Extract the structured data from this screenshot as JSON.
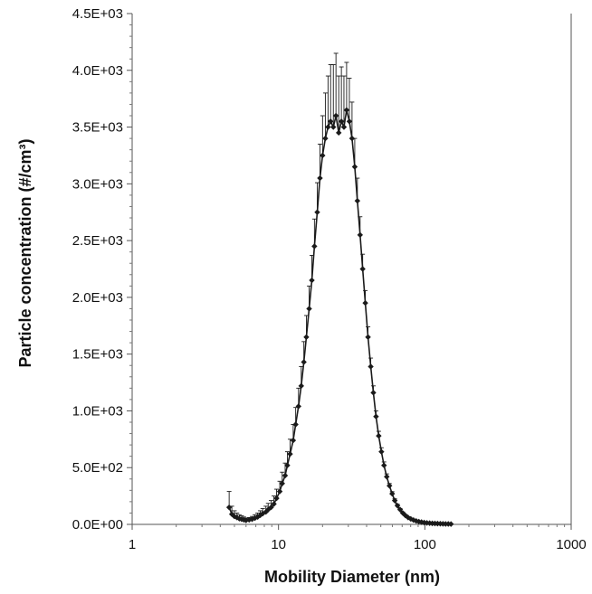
{
  "chart_data": {
    "type": "scatter",
    "title": "",
    "xlabel": "Mobility Diameter (nm)",
    "ylabel": "Particle concentration (#/cm³)",
    "xscale": "log",
    "xlim": [
      1,
      1000
    ],
    "ylim": [
      0,
      4500
    ],
    "x_tick_labels": [
      "1",
      "10",
      "100",
      "1000"
    ],
    "x_tick_values": [
      1,
      10,
      100,
      1000
    ],
    "y_tick_labels": [
      "0.0E+00",
      "5.0E+02",
      "1.0E+03",
      "1.5E+03",
      "2.0E+03",
      "2.5E+03",
      "3.0E+03",
      "3.5E+03",
      "4.0E+03",
      "4.5E+03"
    ],
    "y_tick_values": [
      0,
      500,
      1000,
      1500,
      2000,
      2500,
      3000,
      3500,
      4000,
      4500
    ],
    "grid": false,
    "legend": "none",
    "marker": "diamond",
    "color": "#1a1a1a",
    "series": [
      {
        "x": [
          4.6,
          4.8,
          5.0,
          5.2,
          5.4,
          5.6,
          5.8,
          6.0,
          6.3,
          6.6,
          6.9,
          7.2,
          7.5,
          7.8,
          8.2,
          8.5,
          8.9,
          9.3,
          9.7,
          10.2,
          10.6,
          11.1,
          11.5,
          12.0,
          12.6,
          13.1,
          13.7,
          14.3,
          14.9,
          15.5,
          16.2,
          16.9,
          17.6,
          18.4,
          19.2,
          20.0,
          20.9,
          21.8,
          22.7,
          23.7,
          24.7,
          25.8,
          26.9,
          28.0,
          29.2,
          30.5,
          31.8,
          33.2,
          34.6,
          36.1,
          37.6,
          39.2,
          40.9,
          42.7,
          44.5,
          46.4,
          48.4,
          50.5,
          52.6,
          54.9,
          57.3,
          59.8,
          62.3,
          65.0,
          67.8,
          70.7,
          73.7,
          76.9,
          80.2,
          83.7,
          87.3,
          91.0,
          94.9,
          99.0,
          103.3,
          107.8,
          112.4,
          117.2,
          122.2,
          127.5,
          133.0,
          138.7,
          144.7,
          150.9
        ],
        "y": [
          150,
          90,
          70,
          60,
          50,
          45,
          40,
          35,
          40,
          45,
          55,
          65,
          80,
          95,
          110,
          130,
          150,
          180,
          230,
          290,
          360,
          430,
          520,
          620,
          740,
          880,
          1040,
          1220,
          1430,
          1650,
          1900,
          2150,
          2450,
          2750,
          3050,
          3250,
          3400,
          3500,
          3550,
          3500,
          3600,
          3450,
          3550,
          3500,
          3650,
          3550,
          3400,
          3150,
          2850,
          2550,
          2250,
          1950,
          1650,
          1390,
          1160,
          950,
          780,
          640,
          520,
          420,
          340,
          270,
          210,
          165,
          130,
          100,
          78,
          60,
          48,
          38,
          30,
          24,
          20,
          16,
          13,
          11,
          9,
          8,
          7,
          6,
          5,
          4,
          4,
          3
        ],
        "err": [
          140,
          70,
          50,
          40,
          35,
          30,
          25,
          20,
          20,
          25,
          30,
          35,
          40,
          45,
          50,
          55,
          60,
          70,
          80,
          90,
          100,
          110,
          120,
          130,
          140,
          150,
          160,
          170,
          180,
          190,
          200,
          220,
          240,
          260,
          300,
          350,
          400,
          450,
          500,
          550,
          550,
          500,
          480,
          450,
          420,
          380,
          320,
          250,
          200,
          160,
          130,
          110,
          90,
          75,
          60,
          50,
          40,
          35,
          30,
          25,
          20,
          18,
          15,
          12,
          10,
          9,
          8,
          7,
          6,
          5,
          5,
          4,
          4,
          3,
          3,
          3,
          3,
          3,
          2,
          2,
          2,
          2,
          2,
          2
        ]
      }
    ]
  }
}
